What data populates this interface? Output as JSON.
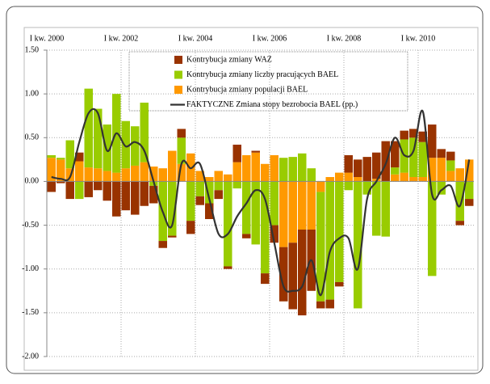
{
  "chart_data": {
    "type": "bar-line",
    "categories": [
      "I kw. 2000",
      null,
      null,
      null,
      null,
      null,
      null,
      null,
      "I kw. 2002",
      null,
      null,
      null,
      null,
      null,
      null,
      null,
      "I kw. 2004",
      null,
      null,
      null,
      null,
      null,
      null,
      null,
      "I kw. 2006",
      null,
      null,
      null,
      null,
      null,
      null,
      null,
      "I kw. 2008",
      null,
      null,
      null,
      null,
      null,
      null,
      null,
      "I kw. 2010",
      null,
      null,
      null,
      null,
      null
    ],
    "ylim": [
      -2,
      1.5
    ],
    "yticks": [
      {
        "value": -2,
        "label": "-2.00"
      },
      {
        "value": -1.5,
        "label": "-1.50"
      },
      {
        "value": -1,
        "label": "-1.00"
      },
      {
        "value": -0.5,
        "label": "-0.50"
      },
      {
        "value": 0,
        "label": "0.00"
      },
      {
        "value": 0.5,
        "label": "0.50"
      },
      {
        "value": 1,
        "label": "1.00"
      },
      {
        "value": 1.5,
        "label": "1.50"
      }
    ],
    "grid": true,
    "series": [
      {
        "name": "Kontrybucja zmiany WAZ",
        "type": "bar",
        "color": "#993300",
        "values": [
          -0.12,
          -0.02,
          -0.2,
          0.1,
          -0.18,
          -0.1,
          -0.22,
          -0.4,
          -0.33,
          -0.38,
          -0.28,
          -0.2,
          -0.08,
          -0.02,
          0.1,
          -0.15,
          -0.1,
          -0.18,
          -0.1,
          -0.03,
          0.2,
          -0.05,
          0.02,
          -0.12,
          -0.2,
          -0.62,
          -0.76,
          -0.98,
          -0.7,
          -0.08,
          -0.1,
          -0.05,
          0.2,
          0.2,
          0.28,
          0.3,
          0.46,
          0.3,
          0.1,
          0.1,
          0.12,
          0.38,
          0.1,
          0.1,
          -0.05,
          -0.08
        ]
      },
      {
        "name": "Kontrybucja zmiany liczby pracujących BAEL",
        "type": "bar",
        "color": "#99cc00",
        "values": [
          0.03,
          0.02,
          0.32,
          -0.2,
          0.9,
          0.68,
          0.53,
          0.9,
          0.54,
          0.45,
          0.68,
          -0.05,
          -0.68,
          -0.62,
          0.3,
          -0.45,
          -0.17,
          -0.25,
          -0.1,
          -0.97,
          -0.08,
          -0.6,
          -0.72,
          -1.05,
          -0.5,
          0.27,
          0.28,
          0.32,
          0.15,
          -1.25,
          -1.35,
          -1.15,
          -0.1,
          -1.45,
          -0.15,
          -0.62,
          -0.63,
          0.08,
          0.38,
          0.45,
          0.4,
          -1.08,
          -0.15,
          0.12,
          -0.45,
          -0.2
        ]
      },
      {
        "name": "Kontrybucja zmiany populacji BAEL",
        "type": "bar",
        "color": "#ff9900",
        "values": [
          0.27,
          0.25,
          0.15,
          0.23,
          0.16,
          0.15,
          0.12,
          0.1,
          0.15,
          0.18,
          0.22,
          0.17,
          0.15,
          0.35,
          0.2,
          0.32,
          0.12,
          0.05,
          0.12,
          0.08,
          0.22,
          0.3,
          0.33,
          0.2,
          0.3,
          -0.75,
          -0.7,
          -0.55,
          -0.55,
          -0.12,
          0.05,
          0.1,
          0.1,
          0.05,
          0,
          0.03,
          0,
          0.08,
          0.1,
          0.05,
          0.05,
          0.27,
          0.27,
          0.12,
          0.15,
          0.25
        ]
      },
      {
        "name": "FAKTYCZNE Zmiana stopy bezrobocia BAEL (pp.)",
        "type": "line",
        "color": "#333333",
        "values": [
          0.05,
          0.03,
          0.05,
          0.45,
          0.78,
          0.78,
          0.35,
          0.55,
          0.4,
          0.45,
          0.35,
          0,
          -0.35,
          -0.5,
          0.2,
          0.15,
          0.2,
          -0.2,
          -0.6,
          -0.6,
          -0.4,
          -0.25,
          -0.1,
          -0.2,
          -0.7,
          -1.2,
          -1.25,
          -1.2,
          -0.9,
          -1.3,
          -0.8,
          -0.65,
          -0.65,
          -1.0,
          -0.2,
          0,
          0.2,
          0.5,
          0.3,
          0.35,
          0.8,
          -0.15,
          -0.1,
          -0.05,
          -0.28,
          0.25
        ]
      }
    ]
  }
}
